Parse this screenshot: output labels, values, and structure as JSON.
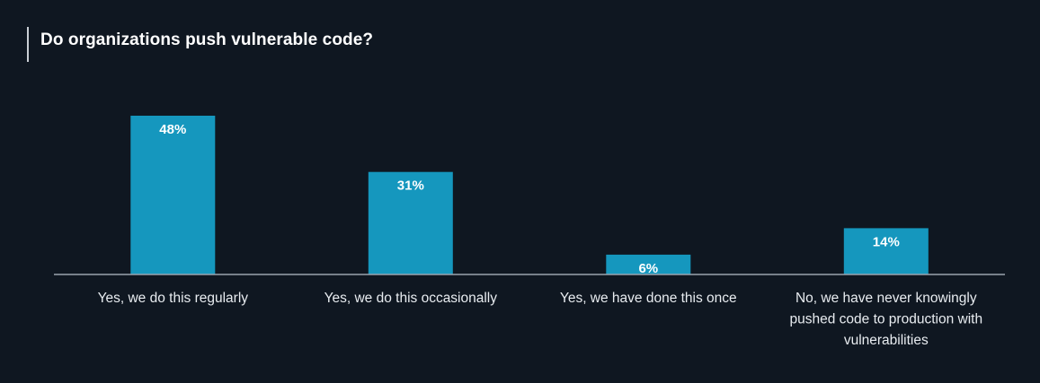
{
  "title": "Do organizations push vulnerable code?",
  "colors": {
    "background": "#0f1721",
    "bar": "#1597be",
    "axis": "#9aa3ad",
    "title_accent": "#c9ced4"
  },
  "chart_data": {
    "type": "bar",
    "title": "Do organizations push vulnerable code?",
    "categories": [
      "Yes, we do this regularly",
      "Yes, we do this occasionally",
      "Yes, we have done this once",
      "No, we have never knowingly pushed code to production with vulnerabilities"
    ],
    "category_lines": [
      [
        "Yes, we do this regularly"
      ],
      [
        "Yes, we do this occasionally"
      ],
      [
        "Yes, we have done this once"
      ],
      [
        "No, we have never knowingly",
        "pushed code to production with",
        "vulnerabilities"
      ]
    ],
    "values": [
      48,
      31,
      6,
      14
    ],
    "value_labels": [
      "48%",
      "31%",
      "6%",
      "14%"
    ],
    "unit": "%",
    "ylim": [
      0,
      48
    ],
    "grid": false,
    "legend": "none"
  }
}
